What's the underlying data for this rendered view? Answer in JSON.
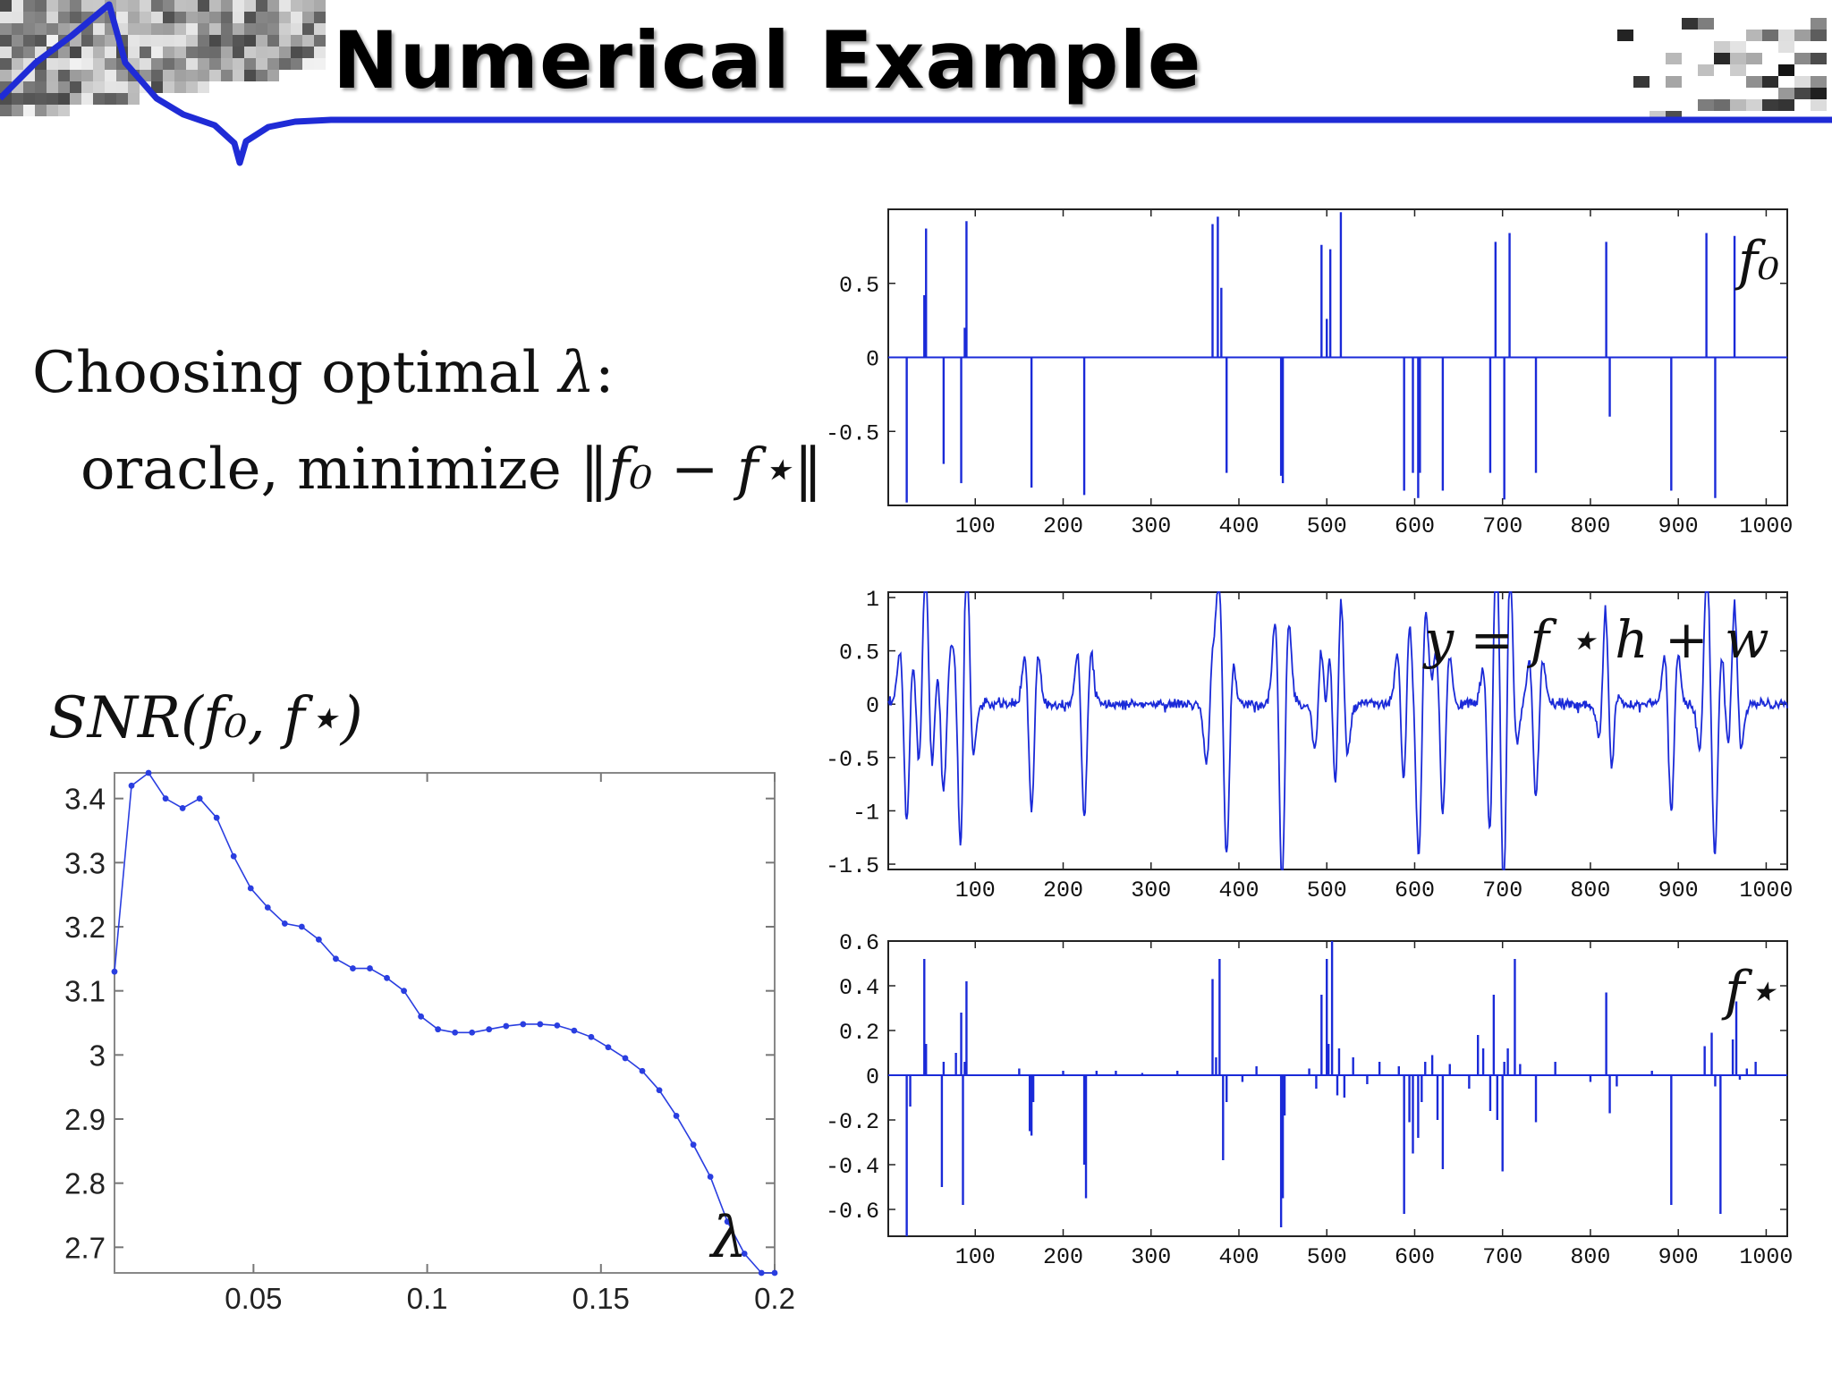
{
  "slide": {
    "title": "Numerical Example",
    "text": {
      "line1_prefix": "Choosing optimal ",
      "line1_symbol": "λ",
      "line1_suffix": ":",
      "line2_prefix": "oracle, minimize ",
      "line2_expr": "‖f₀ − f⋆‖",
      "snr_label": "SNR(f₀, f⋆)"
    }
  },
  "chart_data": [
    {
      "id": "snr",
      "type": "line",
      "title": "",
      "xlabel": "λ",
      "ylabel": "SNR(f₀, f⋆)",
      "xlim": [
        0.01,
        0.2
      ],
      "ylim": [
        2.66,
        3.44
      ],
      "xticks": [
        0.05,
        0.1,
        0.15,
        0.2
      ],
      "xtick_labels": [
        "0.05",
        "0.1",
        "0.15",
        "0.2"
      ],
      "yticks": [
        2.7,
        2.8,
        2.9,
        3.0,
        3.1,
        3.2,
        3.3,
        3.4
      ],
      "ytick_labels": [
        "2.7",
        "2.8",
        "2.9",
        "3",
        "3.1",
        "3.2",
        "3.3",
        "3.4"
      ],
      "color": "#2a3ee0",
      "marker": "dot",
      "grid": false,
      "x": [
        0.01,
        0.0149,
        0.0198,
        0.0247,
        0.0296,
        0.0345,
        0.0394,
        0.0443,
        0.0492,
        0.0541,
        0.059,
        0.0639,
        0.0688,
        0.0737,
        0.0786,
        0.0835,
        0.0884,
        0.0933,
        0.0982,
        0.1031,
        0.108,
        0.1129,
        0.1178,
        0.1227,
        0.1276,
        0.1325,
        0.1374,
        0.1423,
        0.1472,
        0.1521,
        0.157,
        0.1619,
        0.1668,
        0.1717,
        0.1766,
        0.1815,
        0.1864,
        0.1913,
        0.1962,
        0.2
      ],
      "y": [
        3.13,
        3.42,
        3.44,
        3.4,
        3.385,
        3.4,
        3.37,
        3.31,
        3.26,
        3.23,
        3.205,
        3.2,
        3.18,
        3.15,
        3.135,
        3.135,
        3.12,
        3.1,
        3.06,
        3.04,
        3.035,
        3.035,
        3.04,
        3.045,
        3.048,
        3.048,
        3.046,
        3.038,
        3.028,
        3.012,
        2.995,
        2.975,
        2.945,
        2.905,
        2.86,
        2.81,
        2.74,
        2.69,
        2.66,
        2.66
      ]
    },
    {
      "id": "f0",
      "type": "stem",
      "overlay_label": "f₀",
      "xlim": [
        1,
        1024
      ],
      "ylim": [
        -1,
        1
      ],
      "xticks": [
        100,
        200,
        300,
        400,
        500,
        600,
        700,
        800,
        900,
        1000
      ],
      "yticks": [
        -0.5,
        0,
        0.5
      ],
      "ytick_labels": [
        "-0.5",
        "0",
        "0.5"
      ],
      "color": "#1a2ad8",
      "x": [
        22,
        42,
        44,
        64,
        84,
        88,
        90,
        164,
        224,
        370,
        376,
        380,
        386,
        448,
        450,
        494,
        500,
        504,
        516,
        588,
        598,
        604,
        606,
        632,
        686,
        692,
        702,
        708,
        738,
        818,
        822,
        892,
        932,
        942,
        964
      ],
      "values": [
        -0.98,
        0.42,
        0.87,
        -0.72,
        -0.85,
        0.2,
        0.92,
        -0.88,
        -0.93,
        0.9,
        0.95,
        0.47,
        -0.78,
        -0.8,
        -0.85,
        0.76,
        0.26,
        0.73,
        0.98,
        -0.9,
        -0.78,
        -0.95,
        -0.78,
        -0.9,
        -0.78,
        0.78,
        -0.96,
        0.84,
        -0.78,
        0.78,
        -0.4,
        -0.9,
        0.84,
        -0.95,
        0.82
      ]
    },
    {
      "id": "y",
      "type": "line",
      "overlay_label": "y = f ⋆ h + w",
      "xlim": [
        1,
        1024
      ],
      "ylim": [
        -1.55,
        1.05
      ],
      "xticks": [
        100,
        200,
        300,
        400,
        500,
        600,
        700,
        800,
        900,
        1000
      ],
      "yticks": [
        -1.5,
        -1,
        -0.5,
        0,
        0.5,
        1
      ],
      "ytick_labels": [
        "-1.5",
        "-1",
        "-0.5",
        "0",
        "0.5",
        "1"
      ],
      "color": "#1a2ad8",
      "kernel": "mexican_hat",
      "kernel_width": 4.5,
      "kernel_amplitude": 1.12,
      "noise_std": 0.025,
      "source": "f0"
    },
    {
      "id": "fstar",
      "type": "stem",
      "overlay_label": "f⋆",
      "xlim": [
        1,
        1024
      ],
      "ylim": [
        -0.72,
        0.6
      ],
      "xticks": [
        100,
        200,
        300,
        400,
        500,
        600,
        700,
        800,
        900,
        1000
      ],
      "yticks": [
        -0.6,
        -0.4,
        -0.2,
        0,
        0.2,
        0.4,
        0.6
      ],
      "ytick_labels": [
        "-0.6",
        "-0.4",
        "-0.2",
        "0",
        "0.2",
        "0.4",
        "0.6"
      ],
      "color": "#1a2ad8",
      "x": [
        22,
        26,
        42,
        44,
        62,
        64,
        78,
        84,
        86,
        88,
        90,
        150,
        162,
        164,
        166,
        200,
        224,
        226,
        238,
        260,
        290,
        330,
        370,
        374,
        378,
        382,
        386,
        404,
        420,
        448,
        450,
        452,
        480,
        488,
        494,
        500,
        502,
        506,
        512,
        514,
        520,
        530,
        546,
        560,
        582,
        588,
        594,
        598,
        604,
        608,
        612,
        620,
        626,
        632,
        640,
        662,
        672,
        678,
        686,
        690,
        694,
        700,
        702,
        706,
        714,
        720,
        738,
        760,
        800,
        818,
        822,
        830,
        870,
        892,
        930,
        938,
        942,
        948,
        962,
        966,
        970,
        978,
        988
      ],
      "values": [
        -0.72,
        -0.14,
        0.52,
        0.14,
        -0.5,
        0.06,
        0.1,
        0.28,
        -0.58,
        0.06,
        0.42,
        0.03,
        -0.25,
        -0.27,
        -0.12,
        0.02,
        -0.4,
        -0.55,
        0.02,
        0.02,
        0.01,
        0.02,
        0.43,
        0.08,
        0.52,
        -0.38,
        -0.12,
        -0.03,
        0.04,
        -0.68,
        -0.55,
        -0.18,
        0.03,
        -0.06,
        0.36,
        0.52,
        0.14,
        0.6,
        -0.09,
        0.12,
        -0.1,
        0.08,
        -0.04,
        0.06,
        0.04,
        -0.62,
        -0.21,
        -0.35,
        -0.28,
        -0.12,
        0.06,
        0.09,
        -0.2,
        -0.42,
        0.05,
        -0.06,
        0.18,
        0.12,
        -0.16,
        0.36,
        -0.2,
        -0.43,
        0.06,
        0.12,
        0.52,
        0.05,
        -0.21,
        0.06,
        -0.03,
        0.37,
        -0.17,
        -0.05,
        0.02,
        -0.58,
        0.13,
        0.19,
        -0.05,
        -0.62,
        0.16,
        0.33,
        -0.02,
        0.03,
        0.06
      ]
    }
  ]
}
